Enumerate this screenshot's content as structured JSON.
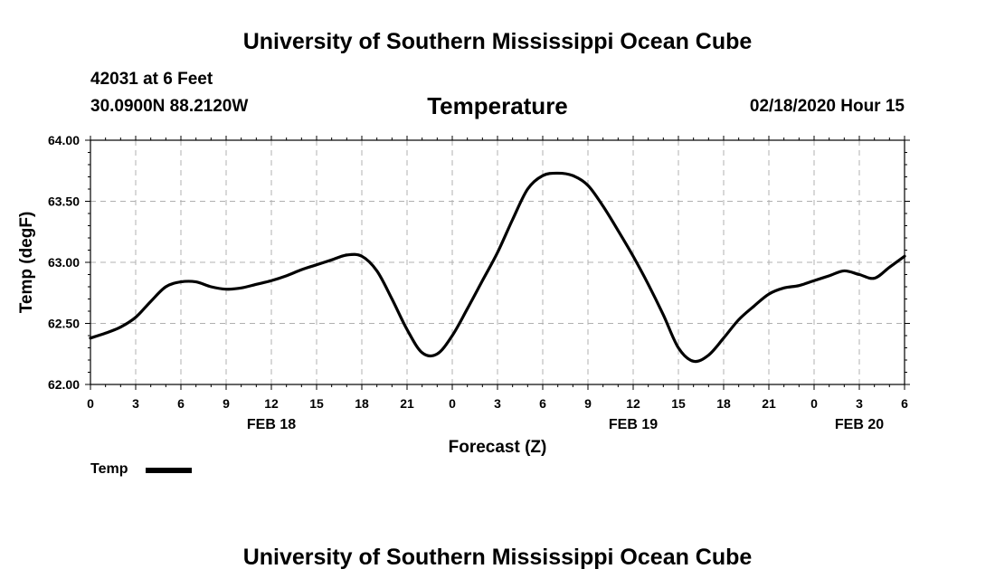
{
  "header": {
    "title": "University of Southern Mississippi Ocean Cube",
    "station": "42031 at 6 Feet",
    "coords": "30.0900N 88.2120W",
    "valid": "02/18/2020 Hour 15"
  },
  "footer": {
    "title": "University of Southern Mississippi Ocean Cube"
  },
  "chart_data": {
    "type": "line",
    "title": "Temperature",
    "xlabel": "Forecast (Z)",
    "ylabel": "Temp (degF)",
    "xlim": [
      0,
      54
    ],
    "ylim": [
      62.0,
      64.0
    ],
    "y_ticks": [
      "62.00",
      "62.50",
      "63.00",
      "63.50",
      "64.00"
    ],
    "x_ticks": [
      "0",
      "3",
      "6",
      "9",
      "12",
      "15",
      "18",
      "21",
      "0",
      "3",
      "6",
      "9",
      "12",
      "15",
      "18",
      "21",
      "0",
      "3",
      "6"
    ],
    "date_labels": [
      {
        "label": "FEB 18",
        "hour": 12
      },
      {
        "label": "FEB 19",
        "hour": 36
      },
      {
        "label": "FEB 20",
        "hour": 51
      }
    ],
    "grid": true,
    "legend": {
      "label": "Temp",
      "placement": "bottom-left"
    },
    "series": [
      {
        "name": "Temp",
        "color": "#000000",
        "x": [
          0,
          1,
          2,
          3,
          4,
          5,
          6,
          7,
          8,
          9,
          10,
          11,
          12,
          13,
          14,
          15,
          16,
          17,
          18,
          19,
          20,
          21,
          22,
          23,
          24,
          25,
          26,
          27,
          28,
          29,
          30,
          31,
          32,
          33,
          34,
          35,
          36,
          37,
          38,
          39,
          40,
          41,
          42,
          43,
          44,
          45,
          46,
          47,
          48,
          49,
          50,
          51,
          52,
          53,
          54
        ],
        "values": [
          62.38,
          62.42,
          62.47,
          62.55,
          62.68,
          62.8,
          62.84,
          62.84,
          62.8,
          62.78,
          62.79,
          62.82,
          62.85,
          62.89,
          62.94,
          62.98,
          63.02,
          63.06,
          63.05,
          62.93,
          62.7,
          62.45,
          62.26,
          62.25,
          62.4,
          62.62,
          62.85,
          63.08,
          63.35,
          63.6,
          63.71,
          63.73,
          63.71,
          63.63,
          63.46,
          63.26,
          63.05,
          62.82,
          62.57,
          62.3,
          62.19,
          62.24,
          62.38,
          62.53,
          62.64,
          62.74,
          62.79,
          62.81,
          62.85,
          62.89,
          62.93,
          62.9,
          62.87,
          62.96,
          63.05
        ]
      }
    ]
  }
}
